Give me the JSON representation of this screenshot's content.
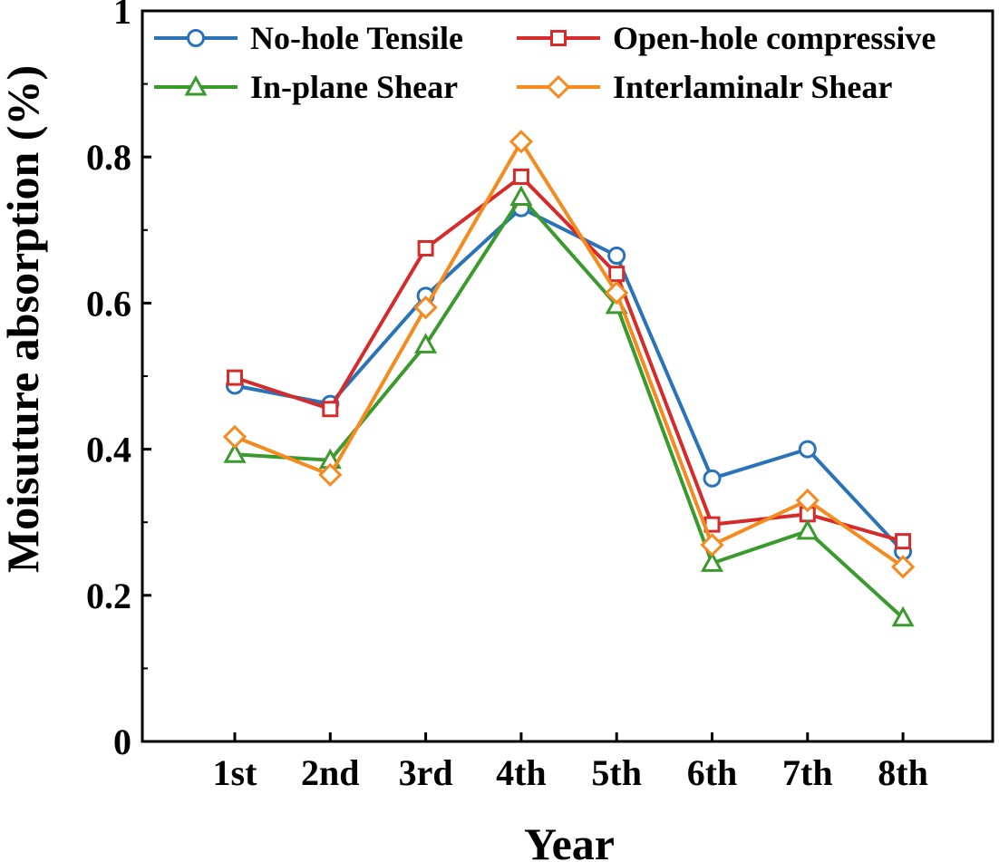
{
  "chart_data": {
    "type": "line",
    "title": "",
    "xlabel": "Year",
    "ylabel": "Moisuture absorption (%)",
    "categories": [
      "1st",
      "2nd",
      "3rd",
      "4th",
      "5th",
      "6th",
      "7th",
      "8th"
    ],
    "ylim": [
      0,
      1
    ],
    "yticks": [
      0,
      0.2,
      0.4,
      0.6,
      0.8,
      1
    ],
    "ytick_labels": [
      "0",
      "0.2",
      "0.4",
      "0.6",
      "0.8",
      "1"
    ],
    "legend_position": "top",
    "series": [
      {
        "name": "No-hole Tensile",
        "marker": "circle",
        "color": "#2a73b8",
        "values": [
          0.487,
          0.462,
          0.61,
          0.73,
          0.665,
          0.36,
          0.4,
          0.26
        ]
      },
      {
        "name": "Open-hole compressive",
        "marker": "square",
        "color": "#d62b2b",
        "values": [
          0.498,
          0.455,
          0.675,
          0.773,
          0.64,
          0.297,
          0.311,
          0.274
        ]
      },
      {
        "name": "In-plane Shear",
        "marker": "triangle",
        "color": "#3a9a2e",
        "values": [
          0.393,
          0.385,
          0.543,
          0.745,
          0.597,
          0.244,
          0.288,
          0.169
        ]
      },
      {
        "name": "Interlaminalr Shear",
        "marker": "diamond",
        "color": "#f58a1f",
        "values": [
          0.417,
          0.365,
          0.594,
          0.821,
          0.614,
          0.269,
          0.33,
          0.239
        ]
      }
    ]
  }
}
